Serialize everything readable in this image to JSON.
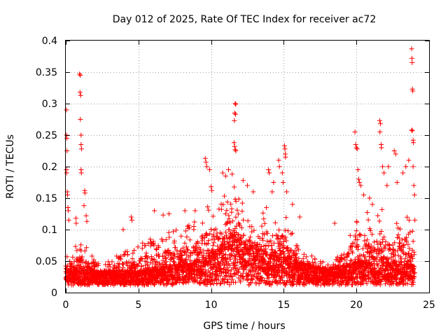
{
  "chart_data": {
    "type": "scatter",
    "title": "Day 012 of 2025, Rate Of TEC Index for receiver ac72",
    "xlabel": "GPS time / hours",
    "ylabel": "ROTI / TECUs",
    "xlim": [
      0,
      25
    ],
    "ylim": [
      0,
      0.4
    ],
    "x_ticks": [
      0,
      5,
      10,
      15,
      20,
      25
    ],
    "x_tick_labels": [
      "0",
      "5",
      "10",
      "15",
      "20",
      "25"
    ],
    "y_ticks": [
      0,
      0.05,
      0.1,
      0.15,
      0.2,
      0.25,
      0.3,
      0.35,
      0.4
    ],
    "y_tick_labels": [
      "0",
      "0.05",
      "0.1",
      "0.15",
      "0.2",
      "0.25",
      "0.3",
      "0.35",
      "0.4"
    ],
    "grid": true,
    "marker": "+",
    "marker_color": "#ff0000",
    "series": [
      {
        "name": "ROTI",
        "envelope": {
          "x": [
            0,
            0.5,
            1,
            1.5,
            2,
            3,
            4,
            5,
            6,
            7,
            8,
            9,
            9.5,
            10,
            10.5,
            11,
            11.5,
            12,
            12.5,
            13,
            13.5,
            14,
            14.5,
            15,
            15.5,
            16,
            17,
            18,
            19,
            19.5,
            20,
            20.5,
            21,
            21.5,
            22,
            22.5,
            23,
            23.5,
            24
          ],
          "base": [
            0.025,
            0.025,
            0.027,
            0.025,
            0.025,
            0.024,
            0.025,
            0.025,
            0.027,
            0.03,
            0.032,
            0.035,
            0.04,
            0.045,
            0.05,
            0.06,
            0.07,
            0.065,
            0.06,
            0.05,
            0.048,
            0.045,
            0.045,
            0.045,
            0.04,
            0.035,
            0.03,
            0.027,
            0.03,
            0.032,
            0.035,
            0.035,
            0.04,
            0.04,
            0.04,
            0.037,
            0.035,
            0.035,
            0.03
          ],
          "peak": [
            0.06,
            0.07,
            0.09,
            0.07,
            0.05,
            0.05,
            0.07,
            0.08,
            0.09,
            0.1,
            0.1,
            0.12,
            0.14,
            0.15,
            0.14,
            0.16,
            0.17,
            0.16,
            0.12,
            0.11,
            0.13,
            0.14,
            0.11,
            0.14,
            0.1,
            0.08,
            0.06,
            0.05,
            0.06,
            0.1,
            0.15,
            0.14,
            0.12,
            0.14,
            0.13,
            0.1,
            0.12,
            0.14,
            0.1
          ]
        },
        "points": [
          [
            0.05,
            0.29
          ],
          [
            0.05,
            0.25
          ],
          [
            0.07,
            0.245
          ],
          [
            0.08,
            0.225
          ],
          [
            0.05,
            0.195
          ],
          [
            0.06,
            0.19
          ],
          [
            0.1,
            0.16
          ],
          [
            0.12,
            0.155
          ],
          [
            0.15,
            0.135
          ],
          [
            0.18,
            0.13
          ],
          [
            0.2,
            0.115
          ],
          [
            0.95,
            0.347
          ],
          [
            1.0,
            0.345
          ],
          [
            0.98,
            0.318
          ],
          [
            1.02,
            0.313
          ],
          [
            1.0,
            0.275
          ],
          [
            1.05,
            0.25
          ],
          [
            1.05,
            0.235
          ],
          [
            1.08,
            0.228
          ],
          [
            1.05,
            0.195
          ],
          [
            1.07,
            0.19
          ],
          [
            1.3,
            0.162
          ],
          [
            1.32,
            0.158
          ],
          [
            1.25,
            0.138
          ],
          [
            1.4,
            0.122
          ],
          [
            1.45,
            0.113
          ],
          [
            0.7,
            0.118
          ],
          [
            0.72,
            0.11
          ],
          [
            3.95,
            0.1
          ],
          [
            4.5,
            0.12
          ],
          [
            4.55,
            0.115
          ],
          [
            6.1,
            0.13
          ],
          [
            6.7,
            0.123
          ],
          [
            7.1,
            0.125
          ],
          [
            8.2,
            0.13
          ],
          [
            8.9,
            0.13
          ],
          [
            9.6,
            0.213
          ],
          [
            9.65,
            0.207
          ],
          [
            9.7,
            0.2
          ],
          [
            9.9,
            0.195
          ],
          [
            10.0,
            0.168
          ],
          [
            10.05,
            0.162
          ],
          [
            10.8,
            0.19
          ],
          [
            11.0,
            0.185
          ],
          [
            11.2,
            0.195
          ],
          [
            11.65,
            0.3
          ],
          [
            11.7,
            0.299
          ],
          [
            11.62,
            0.285
          ],
          [
            11.68,
            0.283
          ],
          [
            11.6,
            0.273
          ],
          [
            11.58,
            0.238
          ],
          [
            11.62,
            0.232
          ],
          [
            11.66,
            0.227
          ],
          [
            11.7,
            0.225
          ],
          [
            11.45,
            0.188
          ],
          [
            12.2,
            0.178
          ],
          [
            12.5,
            0.17
          ],
          [
            12.9,
            0.16
          ],
          [
            13.95,
            0.195
          ],
          [
            14.0,
            0.19
          ],
          [
            14.3,
            0.175
          ],
          [
            14.2,
            0.16
          ],
          [
            14.65,
            0.21
          ],
          [
            14.7,
            0.2
          ],
          [
            14.9,
            0.19
          ],
          [
            14.95,
            0.175
          ],
          [
            15.05,
            0.233
          ],
          [
            15.08,
            0.228
          ],
          [
            15.1,
            0.22
          ],
          [
            15.12,
            0.215
          ],
          [
            15.2,
            0.16
          ],
          [
            15.6,
            0.14
          ],
          [
            16.1,
            0.12
          ],
          [
            18.5,
            0.11
          ],
          [
            19.9,
            0.255
          ],
          [
            19.95,
            0.235
          ],
          [
            20.0,
            0.23
          ],
          [
            20.05,
            0.228
          ],
          [
            20.1,
            0.195
          ],
          [
            20.15,
            0.18
          ],
          [
            20.2,
            0.175
          ],
          [
            20.3,
            0.17
          ],
          [
            20.5,
            0.155
          ],
          [
            20.9,
            0.15
          ],
          [
            21.1,
            0.14
          ],
          [
            21.6,
            0.273
          ],
          [
            21.65,
            0.268
          ],
          [
            21.62,
            0.255
          ],
          [
            21.7,
            0.235
          ],
          [
            21.72,
            0.23
          ],
          [
            21.8,
            0.2
          ],
          [
            21.9,
            0.19
          ],
          [
            22.1,
            0.17
          ],
          [
            22.2,
            0.2
          ],
          [
            22.6,
            0.225
          ],
          [
            22.7,
            0.22
          ],
          [
            22.8,
            0.175
          ],
          [
            23.4,
            0.2
          ],
          [
            23.6,
            0.21
          ],
          [
            23.2,
            0.19
          ],
          [
            23.8,
            0.387
          ],
          [
            23.82,
            0.372
          ],
          [
            23.84,
            0.365
          ],
          [
            23.85,
            0.323
          ],
          [
            23.88,
            0.32
          ],
          [
            23.8,
            0.258
          ],
          [
            23.85,
            0.257
          ],
          [
            23.9,
            0.242
          ],
          [
            23.92,
            0.238
          ],
          [
            23.9,
            0.2
          ],
          [
            23.95,
            0.17
          ],
          [
            24.0,
            0.155
          ],
          [
            24.02,
            0.115
          ]
        ]
      }
    ]
  }
}
